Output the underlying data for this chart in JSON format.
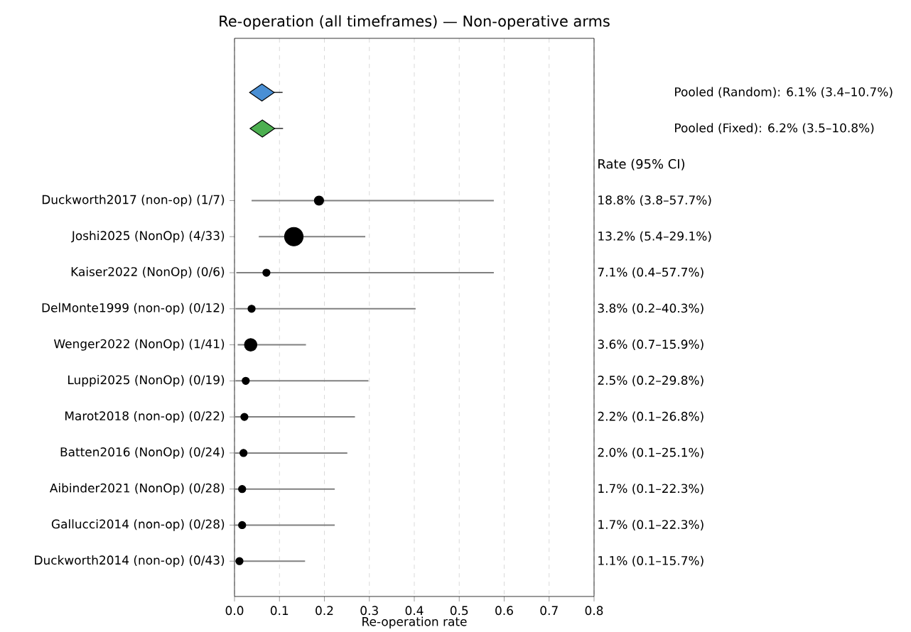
{
  "chart_data": {
    "type": "bubble",
    "orientation": "horizontal",
    "title": "Re-operation (all timeframes) — Non-operative arms",
    "xlabel": "Re-operation rate",
    "categories": [
      null,
      null,
      null,
      "Duckworth2017 (non-op)  (1/7)",
      "Joshi2025 (NonOp)  (4/33)",
      "Kaiser2022 (NonOp)  (0/6)",
      "DelMonte1999 (non-op)  (0/12)",
      "Wenger2022 (NonOp)  (1/41)",
      "Luppi2025 (NonOp)  (0/19)",
      "Marot2018 (non-op)  (0/22)",
      "Batten2016 (NonOp)  (0/24)",
      "Aibinder2021 (NonOp)  (0/28)",
      "Gallucci2014 (non-op)  (0/28)",
      "Duckworth2014 (non-op)  (0/43)"
    ],
    "xlim": [
      0,
      0.8
    ],
    "xticks": [
      {
        "value": 0,
        "label": "0.0"
      },
      0.1,
      0.2,
      0.3,
      0.4,
      0.5,
      0.6,
      0.7,
      0.8
    ],
    "grid": "x",
    "annotations": [
      "Rate (95% CI)",
      "Pooled (Random): 6.1% (3.4–10.7%)",
      "Pooled (Fixed): 6.2% (3.5–10.8%)",
      "18.8% (3.8–57.7%)",
      "13.2% (5.4–29.1%)",
      "7.1% (0.4–57.7%)",
      "3.8% (0.2–40.3%)",
      "3.6% (0.7–15.9%)",
      "2.5% (0.2–29.8%)",
      "2.2% (0.1–26.8%)",
      "2.0% (0.1–25.1%)",
      "1.7% (0.1–22.3%)",
      "1.7% (0.1–22.3%)",
      "1.1% (0.1–15.7%)"
    ],
    "series": [
      {
        "type": "scatter",
        "marker": "diamond",
        "color": "#4a8fd4",
        "values": [
          0.061,
          null,
          null,
          null,
          null,
          null,
          null,
          null,
          null,
          null,
          null,
          null,
          null,
          null
        ],
        "errors": [
          [
            0.034,
            0.107
          ],
          null,
          null,
          null,
          null,
          null,
          null,
          null,
          null,
          null,
          null,
          null,
          null,
          null
        ]
      },
      {
        "type": "scatter",
        "marker": "diamond",
        "color": "#4caf50",
        "values": [
          null,
          0.062,
          null,
          null,
          null,
          null,
          null,
          null,
          null,
          null,
          null,
          null,
          null,
          null
        ],
        "errors": [
          null,
          [
            0.035,
            0.108
          ],
          null,
          null,
          null,
          null,
          null,
          null,
          null,
          null,
          null,
          null,
          null,
          null
        ]
      },
      {
        "marker": "circle",
        "color": "#000000",
        "values": [
          null,
          null,
          null,
          0.188,
          0.132,
          0.071,
          0.038,
          0.036,
          0.025,
          0.022,
          0.02,
          0.017,
          0.017,
          0.011
        ],
        "sizes": [
          null,
          null,
          null,
          0.25,
          1,
          0.15,
          0.15,
          0.45,
          0.15,
          0.15,
          0.15,
          0.15,
          0.15,
          0.15
        ],
        "errors": [
          null,
          null,
          null,
          [
            0.038,
            0.577
          ],
          [
            0.054,
            0.291
          ],
          [
            0.004,
            0.577
          ],
          [
            0.002,
            0.403
          ],
          [
            0.007,
            0.159
          ],
          [
            0.002,
            0.298
          ],
          [
            0.001,
            0.268
          ],
          [
            0.001,
            0.251
          ],
          [
            0.001,
            0.223
          ],
          [
            0.001,
            0.223
          ],
          [
            0.001,
            0.157
          ]
        ]
      }
    ]
  }
}
